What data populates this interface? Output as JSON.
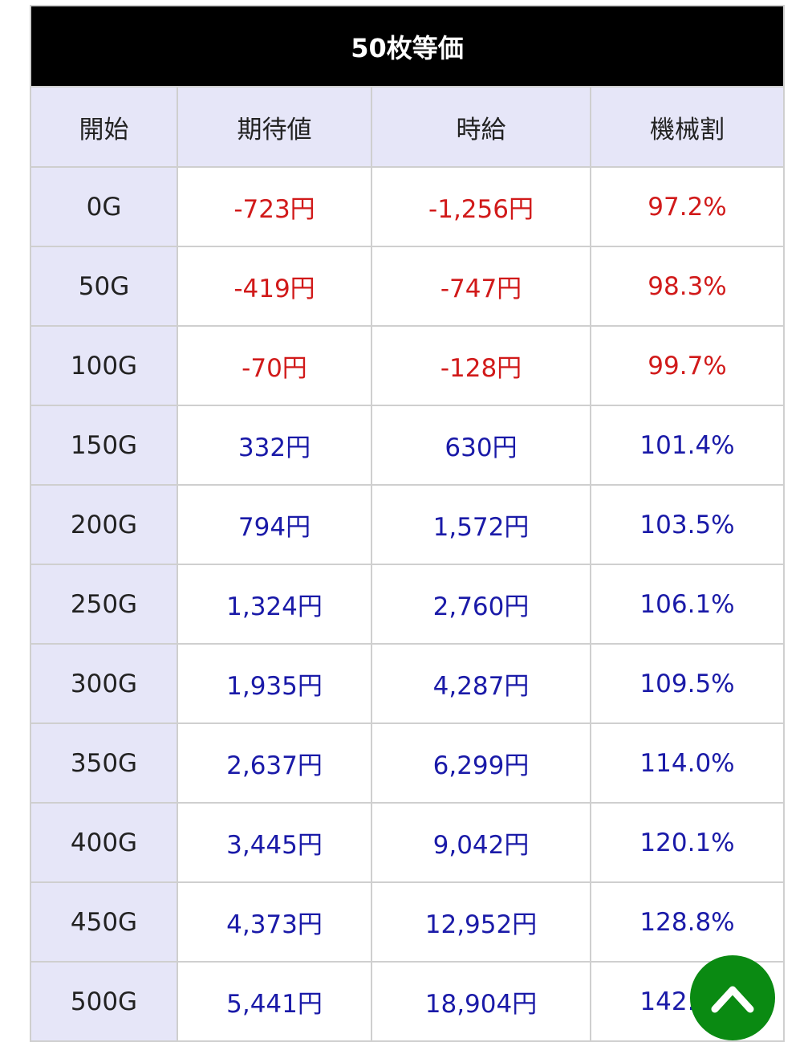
{
  "table": {
    "title": "50枚等価",
    "headers": [
      "開始",
      "期待値",
      "時給",
      "機械割"
    ],
    "rows": [
      {
        "start": "0G",
        "expected": "-723円",
        "hourly": "-1,256円",
        "rate": "97.2%",
        "tone": "neg"
      },
      {
        "start": "50G",
        "expected": "-419円",
        "hourly": "-747円",
        "rate": "98.3%",
        "tone": "neg"
      },
      {
        "start": "100G",
        "expected": "-70円",
        "hourly": "-128円",
        "rate": "99.7%",
        "tone": "neg"
      },
      {
        "start": "150G",
        "expected": "332円",
        "hourly": "630円",
        "rate": "101.4%",
        "tone": "pos"
      },
      {
        "start": "200G",
        "expected": "794円",
        "hourly": "1,572円",
        "rate": "103.5%",
        "tone": "pos"
      },
      {
        "start": "250G",
        "expected": "1,324円",
        "hourly": "2,760円",
        "rate": "106.1%",
        "tone": "pos"
      },
      {
        "start": "300G",
        "expected": "1,935円",
        "hourly": "4,287円",
        "rate": "109.5%",
        "tone": "pos"
      },
      {
        "start": "350G",
        "expected": "2,637円",
        "hourly": "6,299円",
        "rate": "114.0%",
        "tone": "pos"
      },
      {
        "start": "400G",
        "expected": "3,445円",
        "hourly": "9,042円",
        "rate": "120.1%",
        "tone": "pos"
      },
      {
        "start": "450G",
        "expected": "4,373円",
        "hourly": "12,952円",
        "rate": "128.8%",
        "tone": "pos"
      },
      {
        "start": "500G",
        "expected": "5,441円",
        "hourly": "18,904円",
        "rate": "142.0%",
        "tone": "pos"
      }
    ]
  },
  "colors": {
    "negative": "#d11a1a",
    "positive": "#1a1aa8",
    "header_bg": "#e6e6f8",
    "title_bg": "#000000",
    "scroll_button": "#0a8a12"
  },
  "scroll_top_button": {
    "icon": "chevron-up-icon"
  }
}
